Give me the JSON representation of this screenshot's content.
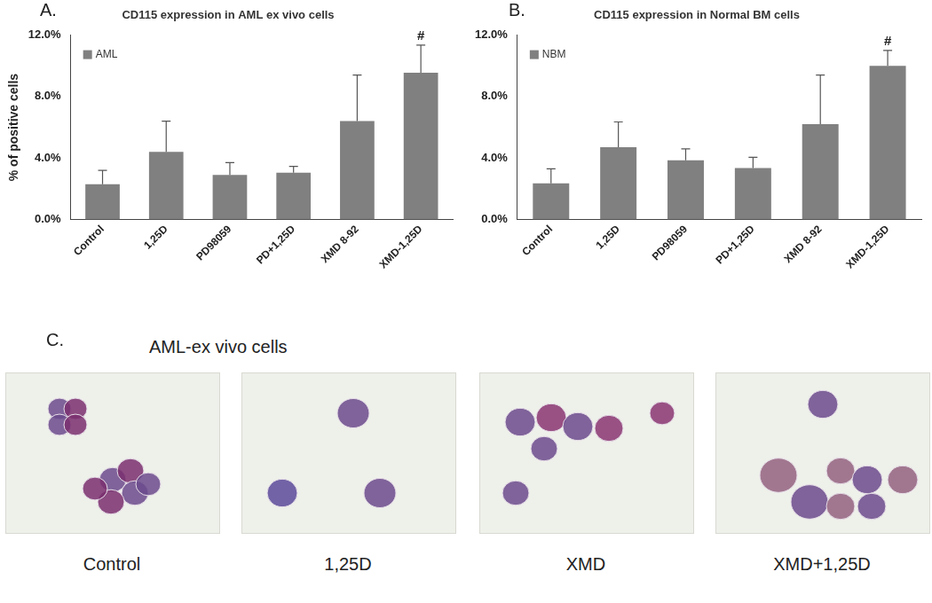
{
  "chart_data": [
    {
      "type": "bar",
      "panel_label": "A.",
      "title": "CD115 expression in AML ex vivo cells",
      "y_label": "% of positive cells",
      "categories": [
        "Control",
        "1,25D",
        "PD98059",
        "PD+1,25D",
        "XMD 8-92",
        "XMD-1,25D"
      ],
      "series": [
        {
          "name": "AML",
          "color": "#808080",
          "values": [
            2.3,
            4.4,
            2.9,
            3.05,
            6.4,
            9.55
          ],
          "errors": [
            0.9,
            2.0,
            0.8,
            0.4,
            3.0,
            1.8
          ]
        }
      ],
      "ylim": [
        0,
        12
      ],
      "yticks": [
        {
          "value": 0,
          "label": "0.0%"
        },
        {
          "value": 4,
          "label": "4.0%"
        },
        {
          "value": 8,
          "label": "8.0%"
        },
        {
          "value": 12,
          "label": "12.0%"
        }
      ],
      "annotations": [
        {
          "category": "XMD-1,25D",
          "text": "#"
        }
      ],
      "grid": false,
      "legend": "upper left"
    },
    {
      "type": "bar",
      "panel_label": "B.",
      "title": "CD115 expression in Normal BM cells",
      "categories": [
        "Control",
        "1,25D",
        "PD98059",
        "PD+1,25D",
        "XMD 8-92",
        "XMD-1,25D"
      ],
      "series": [
        {
          "name": "NBM",
          "color": "#808080",
          "values": [
            2.35,
            4.7,
            3.85,
            3.35,
            6.2,
            10.0
          ],
          "errors": [
            0.95,
            1.65,
            0.75,
            0.7,
            3.2,
            1.0
          ]
        }
      ],
      "ylim": [
        0,
        12
      ],
      "yticks": [
        {
          "value": 0,
          "label": "0.0%"
        },
        {
          "value": 4,
          "label": "4.0%"
        },
        {
          "value": 8,
          "label": "8.0%"
        },
        {
          "value": 12,
          "label": "12.0%"
        }
      ],
      "annotations": [
        {
          "category": "XMD-1,25D",
          "text": "#"
        }
      ],
      "grid": false,
      "legend": "upper left"
    }
  ],
  "panel_c": {
    "panel_label": "C.",
    "title": "AML-ex vivo cells",
    "images": [
      "Control",
      "1,25D",
      "XMD",
      "XMD+1,25D"
    ]
  }
}
